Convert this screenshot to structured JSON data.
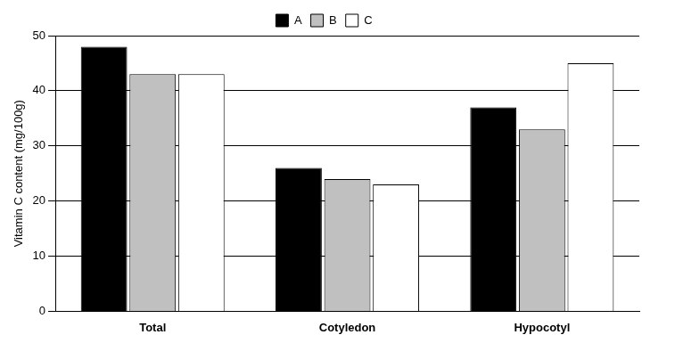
{
  "chart_data": {
    "type": "bar",
    "y_label": "Vitamin C content (mg/100g)",
    "categories": [
      "Total",
      "Cotyledon",
      "Hypocotyl"
    ],
    "series": [
      {
        "name": "A",
        "color": "#000000",
        "values": [
          48,
          26,
          37
        ]
      },
      {
        "name": "B",
        "color": "#c0c0c0",
        "values": [
          43,
          24,
          33
        ]
      },
      {
        "name": "C",
        "color": "#ffffff",
        "values": [
          43,
          23,
          45
        ]
      }
    ],
    "ylim": [
      0,
      50
    ],
    "yticks": [
      0,
      10,
      20,
      30,
      40,
      50
    ],
    "grid": true,
    "legend": "top"
  }
}
